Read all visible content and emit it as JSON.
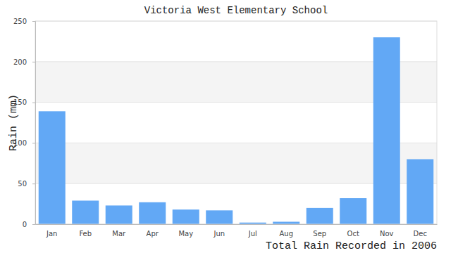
{
  "chart_data": {
    "type": "bar",
    "title": "Victoria West Elementary School",
    "ylabel": "Rain (mm)",
    "xlabel": "Total Rain Recorded in 2006",
    "categories": [
      "Jan",
      "Feb",
      "Mar",
      "Apr",
      "May",
      "Jun",
      "Jul",
      "Aug",
      "Sep",
      "Oct",
      "Nov",
      "Dec"
    ],
    "values": [
      139,
      29,
      23,
      27,
      18,
      17,
      2,
      3,
      20,
      32,
      230,
      80
    ],
    "color": "#62a8f5",
    "ylim": [
      0,
      250
    ],
    "yticks": [
      0,
      50,
      100,
      150,
      200,
      250
    ],
    "grid": true
  }
}
